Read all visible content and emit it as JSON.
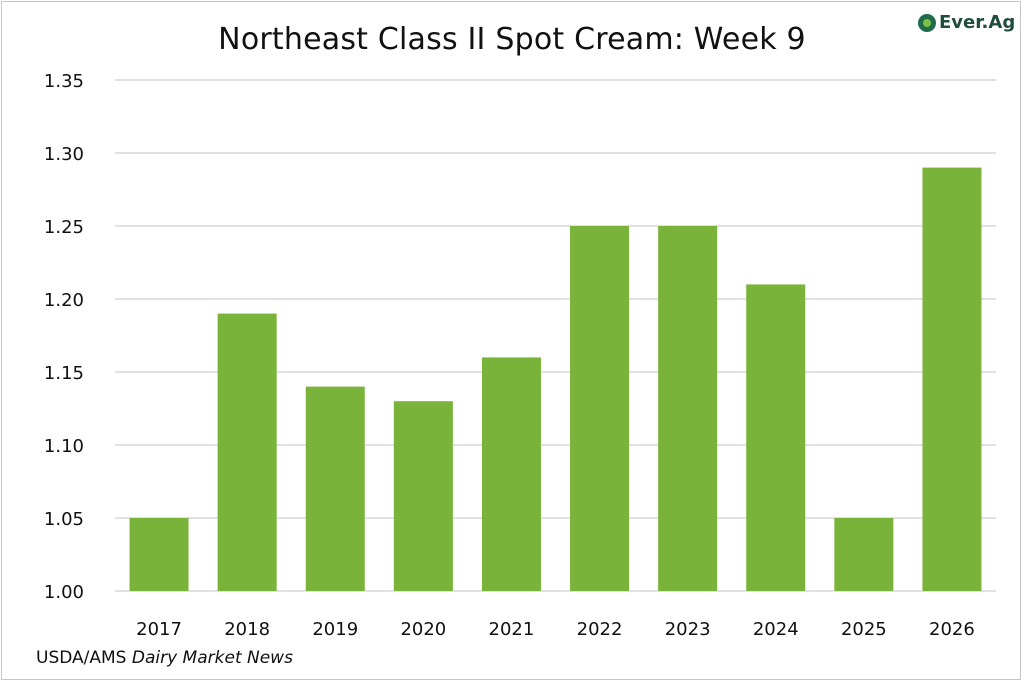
{
  "chart_data": {
    "type": "bar",
    "title": "Northeast Class II Spot Cream: Week 9",
    "categories": [
      "2017",
      "2018",
      "2019",
      "2020",
      "2021",
      "2022",
      "2023",
      "2024",
      "2025",
      "2026"
    ],
    "values": [
      1.05,
      1.19,
      1.14,
      1.13,
      1.16,
      1.25,
      1.25,
      1.21,
      1.05,
      1.29
    ],
    "ylim": [
      1.0,
      1.35
    ],
    "yticks": [
      "1.00",
      "1.05",
      "1.10",
      "1.15",
      "1.20",
      "1.25",
      "1.30",
      "1.35"
    ],
    "xlabel": "",
    "ylabel": "",
    "grid": true,
    "bar_color": "#7ab33a",
    "grid_color": "#cfcfcf"
  },
  "source": {
    "prefix": "USDA/AMS ",
    "italic": "Dairy Market News"
  },
  "logo": {
    "text": "Ever.Ag",
    "icon": "ever-ag-logo-icon"
  }
}
